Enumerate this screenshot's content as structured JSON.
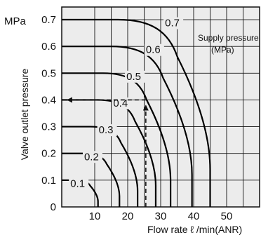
{
  "chart_data": {
    "type": "line",
    "y_unit": "MPa",
    "ylabel": "Valve outlet pressure",
    "xlabel": "Flow rate  ℓ /min(ANR)",
    "xlim": [
      0,
      60
    ],
    "ylim": [
      0,
      0.75
    ],
    "x_ticks": [
      "10",
      "20",
      "30",
      "40",
      "50"
    ],
    "y_ticks": [
      "0",
      "0.1",
      "0.2",
      "0.3",
      "0.4",
      "0.5",
      "0.6",
      "0.7"
    ],
    "grid": true,
    "legend": {
      "title": "Supply pressure",
      "unit": "(MPa)",
      "placement": "top-right"
    },
    "series": [
      {
        "name": "0.1",
        "set_pressure": 0.1,
        "max_flow": 11
      },
      {
        "name": "0.2",
        "set_pressure": 0.2,
        "max_flow": 17.5
      },
      {
        "name": "0.3",
        "set_pressure": 0.3,
        "max_flow": 23
      },
      {
        "name": "0.4",
        "set_pressure": 0.4,
        "max_flow": 28.5
      },
      {
        "name": "0.5",
        "set_pressure": 0.5,
        "max_flow": 33
      },
      {
        "name": "0.6",
        "set_pressure": 0.6,
        "max_flow": 39.5
      },
      {
        "name": "0.7",
        "set_pressure": 0.7,
        "max_flow": 45
      }
    ],
    "example": {
      "flow": 25.5,
      "pressure": 0.4
    }
  }
}
